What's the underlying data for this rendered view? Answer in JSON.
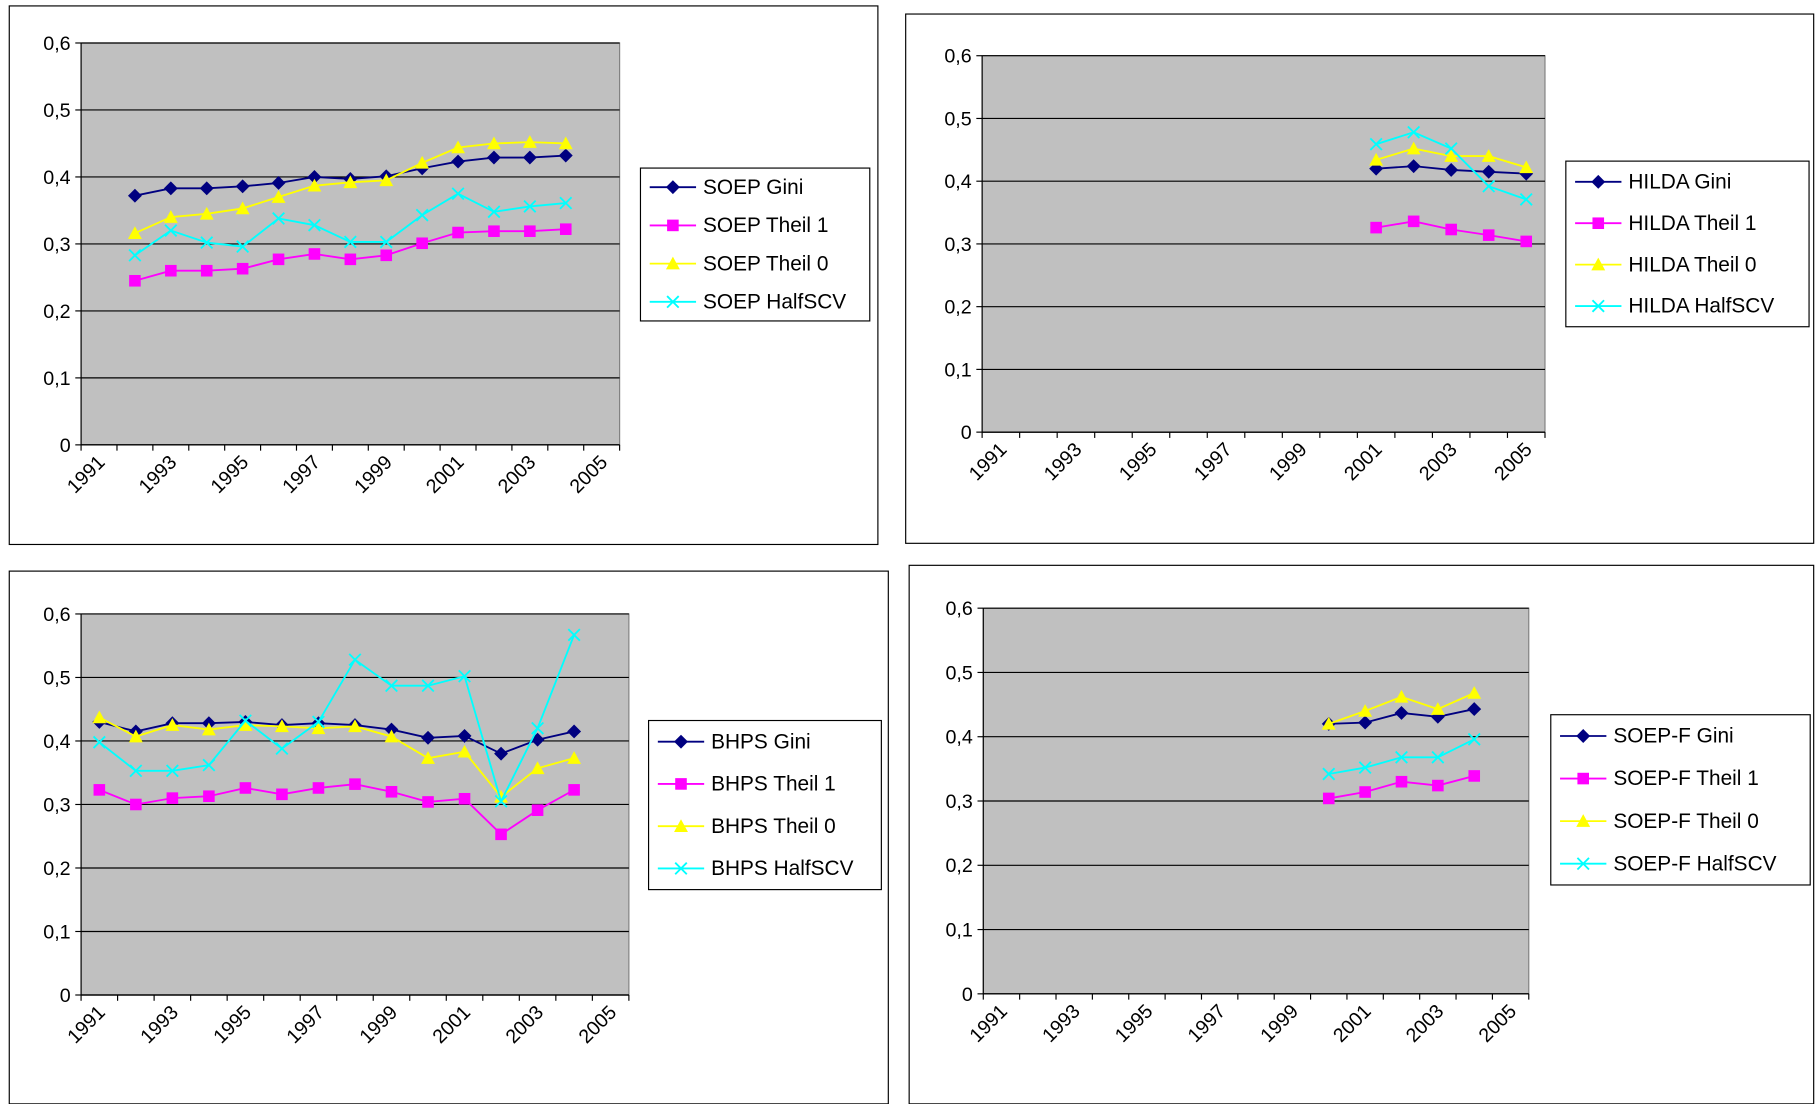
{
  "chart_data": [
    {
      "type": "line",
      "legend": "right",
      "categories": [
        "1991",
        null,
        "1993",
        null,
        "1995",
        null,
        "1997",
        null,
        "1999",
        null,
        "2001",
        null,
        "2003",
        null,
        "2005"
      ],
      "ylim": [
        0,
        0.6
      ],
      "yticks": [
        0,
        {
          "value": 0.1,
          "label": "0,1"
        },
        {
          "value": 0.2,
          "label": "0,2"
        },
        {
          "value": 0.3,
          "label": "0,3"
        },
        {
          "value": 0.4,
          "label": "0,4"
        },
        {
          "value": 0.5,
          "label": "0,5"
        },
        {
          "value": 0.6,
          "label": "0,6"
        }
      ],
      "grid": true,
      "series": [
        {
          "name": "SOEP Gini",
          "color": "#000080",
          "marker": "diamond",
          "values": [
            null,
            0.372,
            0.383,
            0.383,
            0.386,
            0.391,
            0.4,
            0.397,
            0.401,
            0.413,
            0.423,
            0.429,
            0.429,
            0.432,
            null
          ]
        },
        {
          "name": "SOEP Theil 1",
          "color": "#ff00ff",
          "marker": "square",
          "values": [
            null,
            0.245,
            0.26,
            0.26,
            0.263,
            0.277,
            0.285,
            0.277,
            0.283,
            0.301,
            0.317,
            0.319,
            0.319,
            0.322,
            null
          ]
        },
        {
          "name": "SOEP Theil 0",
          "color": "#ffff00",
          "marker": "triangle",
          "values": [
            null,
            0.316,
            0.34,
            0.345,
            0.353,
            0.37,
            0.387,
            0.392,
            0.395,
            0.421,
            0.444,
            0.45,
            0.452,
            0.45,
            null
          ]
        },
        {
          "name": "SOEP HalfSCV",
          "color": "#00ffff",
          "marker": "x",
          "values": [
            null,
            0.283,
            0.32,
            0.302,
            0.296,
            0.338,
            0.328,
            0.303,
            0.303,
            0.343,
            0.375,
            0.348,
            0.356,
            0.361,
            null
          ]
        }
      ]
    },
    {
      "type": "line",
      "legend": "right",
      "categories": [
        "1991",
        null,
        "1993",
        null,
        "1995",
        null,
        "1997",
        null,
        "1999",
        null,
        "2001",
        null,
        "2003",
        null,
        "2005"
      ],
      "ylim": [
        0,
        0.6
      ],
      "yticks": [
        0,
        {
          "value": 0.1,
          "label": "0,1"
        },
        {
          "value": 0.2,
          "label": "0,2"
        },
        {
          "value": 0.3,
          "label": "0,3"
        },
        {
          "value": 0.4,
          "label": "0,4"
        },
        {
          "value": 0.5,
          "label": "0,5"
        },
        {
          "value": 0.6,
          "label": "0,6"
        }
      ],
      "grid": true,
      "series": [
        {
          "name": "HILDA Gini",
          "color": "#000080",
          "marker": "diamond",
          "values": [
            null,
            null,
            null,
            null,
            null,
            null,
            null,
            null,
            null,
            null,
            0.42,
            0.424,
            0.418,
            0.415,
            0.412
          ]
        },
        {
          "name": "HILDA Theil 1",
          "color": "#ff00ff",
          "marker": "square",
          "values": [
            null,
            null,
            null,
            null,
            null,
            null,
            null,
            null,
            null,
            null,
            0.326,
            0.336,
            0.323,
            0.314,
            0.304
          ]
        },
        {
          "name": "HILDA Theil 0",
          "color": "#ffff00",
          "marker": "triangle",
          "values": [
            null,
            null,
            null,
            null,
            null,
            null,
            null,
            null,
            null,
            null,
            0.434,
            0.452,
            0.44,
            0.44,
            0.422
          ]
        },
        {
          "name": "HILDA HalfSCV",
          "color": "#00ffff",
          "marker": "x",
          "values": [
            null,
            null,
            null,
            null,
            null,
            null,
            null,
            null,
            null,
            null,
            0.459,
            0.478,
            0.452,
            0.392,
            0.371
          ]
        }
      ]
    },
    {
      "type": "line",
      "legend": "right",
      "categories": [
        "1991",
        null,
        "1993",
        null,
        "1995",
        null,
        "1997",
        null,
        "1999",
        null,
        "2001",
        null,
        "2003",
        null,
        "2005"
      ],
      "ylim": [
        0,
        0.6
      ],
      "yticks": [
        0,
        {
          "value": 0.1,
          "label": "0,1"
        },
        {
          "value": 0.2,
          "label": "0,2"
        },
        {
          "value": 0.3,
          "label": "0,3"
        },
        {
          "value": 0.4,
          "label": "0,4"
        },
        {
          "value": 0.5,
          "label": "0,5"
        },
        {
          "value": 0.6,
          "label": "0,6"
        }
      ],
      "grid": true,
      "series": [
        {
          "name": "BHPS Gini",
          "color": "#000080",
          "marker": "diamond",
          "values": [
            0.43,
            0.415,
            0.428,
            0.428,
            0.43,
            0.425,
            0.428,
            0.425,
            0.418,
            0.405,
            0.408,
            0.38,
            0.402,
            0.415,
            null
          ]
        },
        {
          "name": "BHPS Theil 1",
          "color": "#ff00ff",
          "marker": "square",
          "values": [
            0.323,
            0.3,
            0.31,
            0.313,
            0.326,
            0.316,
            0.326,
            0.332,
            0.32,
            0.304,
            0.309,
            0.253,
            0.291,
            0.323,
            null
          ]
        },
        {
          "name": "BHPS Theil 0",
          "color": "#ffff00",
          "marker": "triangle",
          "values": [
            0.437,
            0.407,
            0.425,
            0.418,
            0.425,
            0.423,
            0.42,
            0.423,
            0.407,
            0.373,
            0.383,
            0.312,
            0.357,
            0.373,
            null
          ]
        },
        {
          "name": "BHPS HalfSCV",
          "color": "#00ffff",
          "marker": "x",
          "values": [
            0.398,
            0.353,
            0.353,
            0.362,
            0.432,
            0.388,
            0.43,
            0.528,
            0.487,
            0.487,
            0.502,
            0.305,
            0.42,
            0.567,
            null
          ]
        }
      ]
    },
    {
      "type": "line",
      "legend": "right",
      "categories": [
        "1991",
        null,
        "1993",
        null,
        "1995",
        null,
        "1997",
        null,
        "1999",
        null,
        "2001",
        null,
        "2003",
        null,
        "2005"
      ],
      "ylim": [
        0,
        0.6
      ],
      "yticks": [
        0,
        {
          "value": 0.1,
          "label": "0,1"
        },
        {
          "value": 0.2,
          "label": "0,2"
        },
        {
          "value": 0.3,
          "label": "0,3"
        },
        {
          "value": 0.4,
          "label": "0,4"
        },
        {
          "value": 0.5,
          "label": "0,5"
        },
        {
          "value": 0.6,
          "label": "0,6"
        }
      ],
      "grid": true,
      "series": [
        {
          "name": "SOEP-F Gini",
          "color": "#000080",
          "marker": "diamond",
          "values": [
            null,
            null,
            null,
            null,
            null,
            null,
            null,
            null,
            null,
            0.42,
            0.422,
            0.437,
            0.431,
            0.443,
            null
          ]
        },
        {
          "name": "SOEP-F Theil 1",
          "color": "#ff00ff",
          "marker": "square",
          "values": [
            null,
            null,
            null,
            null,
            null,
            null,
            null,
            null,
            null,
            0.304,
            0.314,
            0.33,
            0.324,
            0.339,
            null
          ]
        },
        {
          "name": "SOEP-F Theil 0",
          "color": "#ffff00",
          "marker": "triangle",
          "values": [
            null,
            null,
            null,
            null,
            null,
            null,
            null,
            null,
            null,
            0.42,
            0.44,
            0.462,
            0.443,
            0.468,
            null
          ]
        },
        {
          "name": "SOEP-F HalfSCV",
          "color": "#00ffff",
          "marker": "x",
          "values": [
            null,
            null,
            null,
            null,
            null,
            null,
            null,
            null,
            null,
            0.342,
            0.352,
            0.368,
            0.368,
            0.396,
            null
          ]
        }
      ]
    }
  ]
}
